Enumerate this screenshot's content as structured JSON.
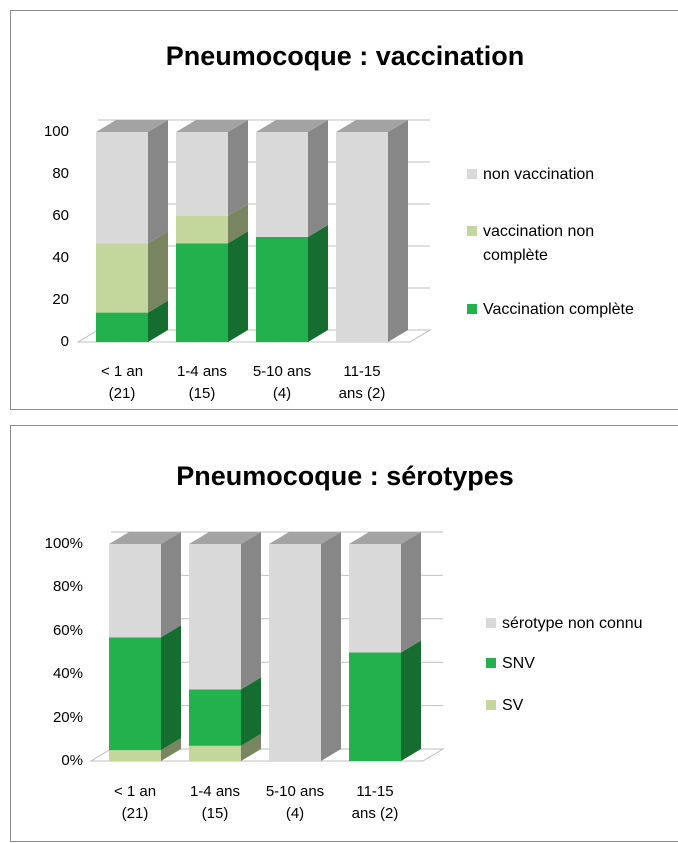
{
  "chart_data": [
    {
      "type": "bar3d_stacked",
      "title": "Pneumocoque : vaccination",
      "categories": [
        "< 1 an\n(21)",
        "1-4 ans\n(15)",
        "5-10 ans\n(4)",
        "11-15\nans (2)"
      ],
      "series": [
        {
          "name": "Vaccination complète",
          "color": "#22b14c",
          "values": [
            14,
            47,
            50,
            0
          ]
        },
        {
          "name": "vaccination non\ncomplète",
          "color": "#c3d69b",
          "values": [
            33,
            13,
            0,
            0
          ]
        },
        {
          "name": "non vaccination",
          "color": "#d9d9d9",
          "values": [
            53,
            40,
            50,
            100
          ]
        }
      ],
      "ylim": [
        0,
        100
      ],
      "yticks": [
        0,
        20,
        40,
        60,
        80,
        100
      ],
      "grid": true,
      "legend": "right"
    },
    {
      "type": "bar3d_stacked",
      "title": "Pneumocoque : sérotypes",
      "categories": [
        "< 1 an\n(21)",
        "1-4 ans\n(15)",
        "5-10 ans\n(4)",
        "11-15\nans (2)"
      ],
      "series": [
        {
          "name": "SV",
          "color": "#c3d69b",
          "values": [
            5,
            7,
            0,
            0
          ]
        },
        {
          "name": "SNV",
          "color": "#22b14c",
          "values": [
            52,
            26,
            0,
            50
          ]
        },
        {
          "name": "sérotype non connu",
          "color": "#d9d9d9",
          "values": [
            43,
            67,
            100,
            50
          ]
        }
      ],
      "ylim": [
        0,
        100
      ],
      "yticks": [
        {
          "value": 0,
          "label": "0%"
        },
        {
          "value": 20,
          "label": "20%"
        },
        {
          "value": 40,
          "label": "40%"
        },
        {
          "value": 60,
          "label": "60%"
        },
        {
          "value": 80,
          "label": "80%"
        },
        {
          "value": 100,
          "label": "100%"
        }
      ],
      "grid": true,
      "legend": "right"
    }
  ]
}
